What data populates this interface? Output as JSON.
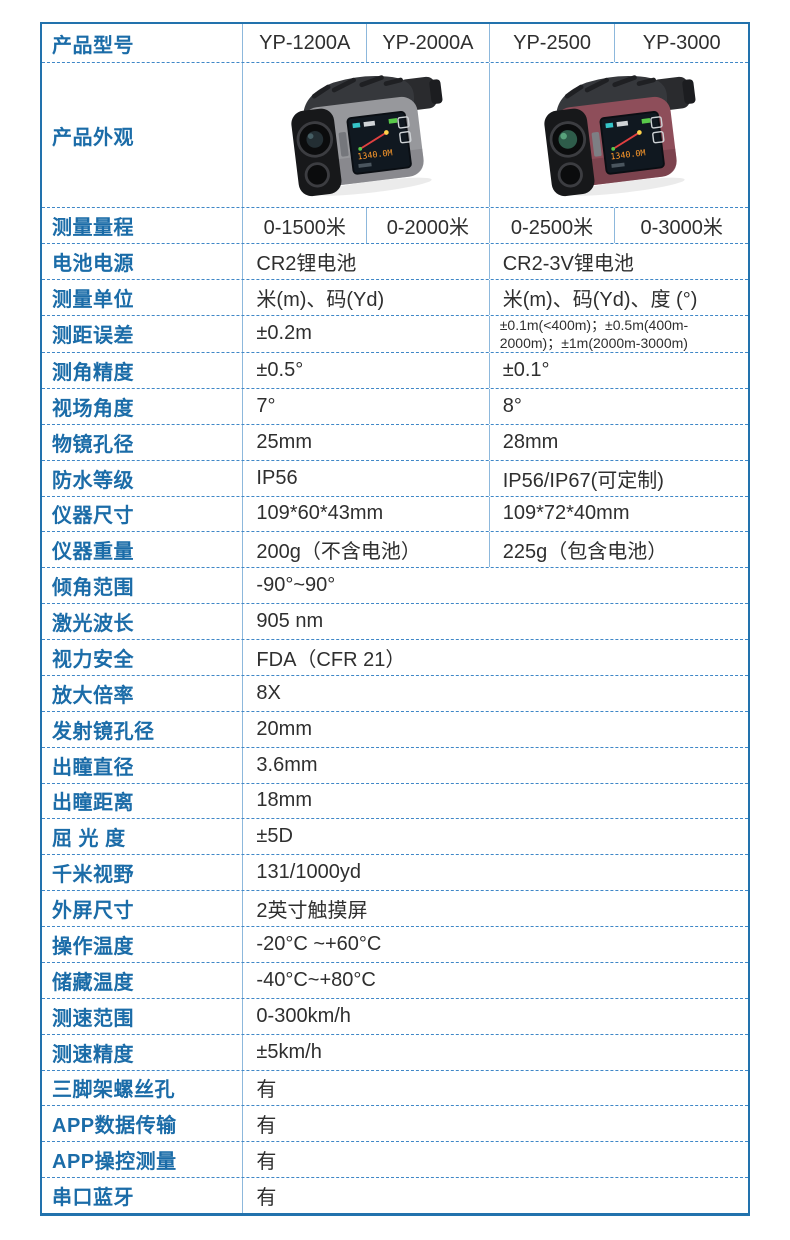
{
  "table": {
    "header": {
      "label": "产品型号",
      "models": [
        "YP-1200A",
        "YP-2000A",
        "YP-2500",
        "YP-3000"
      ]
    },
    "appearance": {
      "label": "产品外观",
      "device_left": "silver-rangefinder",
      "device_right": "maroon-rangefinder",
      "screen_reading": "1340.0M"
    },
    "rows": [
      {
        "label": "测量量程",
        "type": "four",
        "values": [
          "0-1500米",
          "0-2000米",
          "0-2500米",
          "0-3000米"
        ]
      },
      {
        "label": "电池电源",
        "type": "two",
        "values": [
          "CR2锂电池",
          "CR2-3V锂电池"
        ]
      },
      {
        "label": "测量单位",
        "type": "two",
        "values": [
          "米(m)、码(Yd)",
          "米(m)、码(Yd)、度 (°)"
        ]
      },
      {
        "label": "测距误差",
        "type": "two",
        "small": true,
        "values": [
          "±0.2m",
          "±0.1m(<400m)；±0.5m(400m-2000m)；±1m(2000m-3000m)"
        ]
      },
      {
        "label": "测角精度",
        "type": "two",
        "values": [
          "±0.5°",
          "±0.1°"
        ]
      },
      {
        "label": "视场角度",
        "type": "two",
        "values": [
          "7°",
          "8°"
        ]
      },
      {
        "label": "物镜孔径",
        "type": "two",
        "values": [
          "25mm",
          "28mm"
        ]
      },
      {
        "label": "防水等级",
        "type": "two",
        "values": [
          "IP56",
          "IP56/IP67(可定制)"
        ]
      },
      {
        "label": "仪器尺寸",
        "type": "two",
        "values": [
          "109*60*43mm",
          "109*72*40mm"
        ]
      },
      {
        "label": "仪器重量",
        "type": "two",
        "values": [
          "200g（不含电池）",
          "225g（包含电池）"
        ]
      },
      {
        "label": "倾角范围",
        "type": "one",
        "values": [
          "-90°~90°"
        ]
      },
      {
        "label": "激光波长",
        "type": "one",
        "values": [
          "905 nm"
        ]
      },
      {
        "label": "视力安全",
        "type": "one",
        "values": [
          "FDA（CFR 21）"
        ]
      },
      {
        "label": "放大倍率",
        "type": "one",
        "values": [
          "8X"
        ]
      },
      {
        "label": "发射镜孔径",
        "type": "one",
        "values": [
          "20mm"
        ]
      },
      {
        "label": "出瞳直径",
        "type": "one",
        "values": [
          "3.6mm"
        ]
      },
      {
        "label": "出瞳距离",
        "type": "one",
        "values": [
          "18mm"
        ]
      },
      {
        "label": "屈 光 度",
        "type": "one",
        "values": [
          "±5D"
        ]
      },
      {
        "label": "千米视野",
        "type": "one",
        "values": [
          "131/1000yd"
        ]
      },
      {
        "label": "外屏尺寸",
        "type": "one",
        "values": [
          "2英寸触摸屏"
        ]
      },
      {
        "label": "操作温度",
        "type": "one",
        "values": [
          "-20°C ~+60°C"
        ]
      },
      {
        "label": "储藏温度",
        "type": "one",
        "values": [
          "-40°C~+80°C"
        ]
      },
      {
        "label": "测速范围",
        "type": "one",
        "values": [
          "0-300km/h"
        ]
      },
      {
        "label": "测速精度",
        "type": "one",
        "values": [
          "±5km/h"
        ]
      },
      {
        "label": "三脚架螺丝孔",
        "type": "one",
        "values": [
          "有"
        ]
      },
      {
        "label": "APP数据传输",
        "type": "one",
        "values": [
          "有"
        ]
      },
      {
        "label": "APP操控测量",
        "type": "one",
        "values": [
          "有"
        ]
      },
      {
        "label": "串口蓝牙",
        "type": "one",
        "values": [
          "有"
        ]
      }
    ],
    "colors": {
      "label_blue": "#1b6ca8",
      "outer_border": "#2272ad",
      "dashed_border": "#3f87c7",
      "value_text": "#2f2f2f",
      "device_silver": "#97989c",
      "device_maroon": "#8e4e5a",
      "screen_orange": "#ff9a2a",
      "screen_teal": "#35c4c8"
    }
  }
}
